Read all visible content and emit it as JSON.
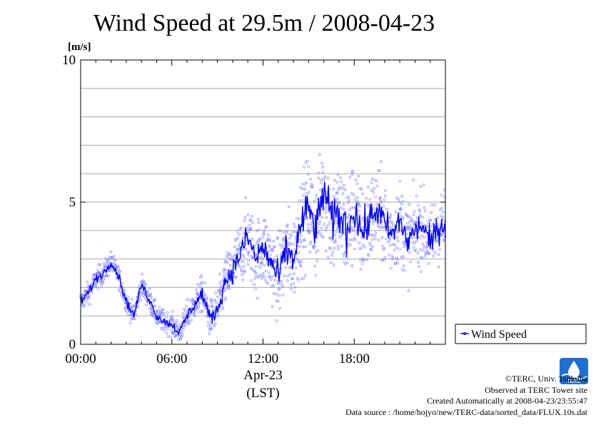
{
  "title": "Wind Speed at 29.5m / 2008-04-23",
  "credits": {
    "copyright": "©TERC, Univ. Tsukuba",
    "observed": "Observed at TERC Tower site",
    "created": "Created Automatically at 2008-04-23/23:55:47",
    "source": "Data source : /home/hojyo/new/TERC-data/sorted_data/FLUX.10s.dat"
  },
  "logo_text": "TERC",
  "colors": {
    "line": "#0000ee",
    "points": "#8080ff",
    "grid": "#aaaaaa",
    "logo": "#1e6fd0"
  },
  "chart_data": {
    "type": "line",
    "title": "Wind Speed at 29.5m / 2008-04-23",
    "ylabel": "[m/s]",
    "xlabel": "Apr-23",
    "xlabel2": "(LST)",
    "ylim": [
      0,
      10
    ],
    "yticks": [
      0,
      5,
      10
    ],
    "ygrid_step": 1,
    "xlim": [
      "00:00",
      "24:00"
    ],
    "xticks": [
      "00:00",
      "06:00",
      "12:00",
      "18:00"
    ],
    "grid": true,
    "legend_position": "right",
    "series": [
      {
        "name": "Wind Speed",
        "style": "line with 10-second sample scatter",
        "x": [
          "00:00",
          "00:30",
          "01:00",
          "01:30",
          "02:00",
          "02:30",
          "03:00",
          "03:30",
          "04:00",
          "04:30",
          "05:00",
          "05:30",
          "06:00",
          "06:30",
          "07:00",
          "07:30",
          "08:00",
          "08:30",
          "09:00",
          "09:30",
          "10:00",
          "10:30",
          "11:00",
          "11:30",
          "12:00",
          "12:30",
          "13:00",
          "13:30",
          "14:00",
          "14:30",
          "15:00",
          "15:30",
          "16:00",
          "16:30",
          "17:00",
          "17:30",
          "18:00",
          "18:30",
          "19:00",
          "19:30",
          "20:00",
          "20:30",
          "21:00",
          "21:30",
          "22:00",
          "22:30",
          "23:00",
          "23:30",
          "24:00"
        ],
        "values": [
          1.5,
          1.8,
          2.3,
          2.5,
          2.9,
          2.4,
          1.5,
          1.0,
          2.1,
          1.6,
          1.0,
          0.8,
          0.7,
          0.4,
          1.0,
          1.4,
          1.8,
          0.9,
          1.2,
          2.2,
          2.6,
          3.2,
          3.8,
          3.0,
          3.4,
          2.9,
          2.3,
          3.3,
          3.0,
          4.2,
          4.8,
          4.0,
          5.5,
          4.3,
          4.6,
          4.0,
          4.8,
          3.9,
          4.3,
          4.8,
          4.2,
          3.8,
          4.4,
          3.6,
          4.0,
          4.2,
          3.5,
          4.1,
          4.2
        ],
        "sample_spread": [
          0.3,
          0.3,
          0.3,
          0.3,
          0.3,
          0.3,
          0.3,
          0.3,
          0.3,
          0.3,
          0.3,
          0.3,
          0.3,
          0.3,
          0.4,
          0.4,
          0.5,
          0.5,
          0.6,
          0.7,
          0.8,
          0.9,
          1.0,
          1.0,
          1.1,
          1.1,
          1.1,
          1.2,
          1.2,
          1.3,
          1.4,
          1.4,
          1.5,
          1.5,
          1.5,
          1.5,
          1.4,
          1.3,
          1.3,
          1.2,
          1.2,
          1.1,
          1.1,
          1.1,
          1.0,
          1.0,
          1.0,
          1.0,
          1.0
        ]
      }
    ]
  }
}
